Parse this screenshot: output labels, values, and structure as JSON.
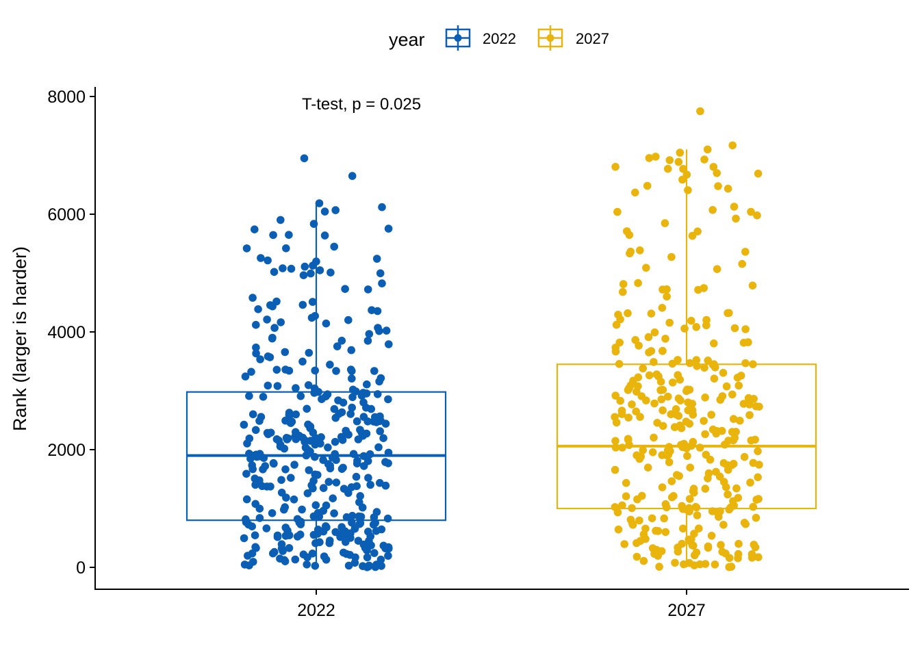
{
  "chart_data": {
    "type": "box-jitter",
    "legend": {
      "title": "year",
      "position": "top",
      "entries": [
        "2022",
        "2027"
      ]
    },
    "annotation": "T-test, p = 0.025",
    "ylabel": "Rank (larger is harder)",
    "xlabel": "",
    "ylim": [
      -380,
      8150
    ],
    "yticks": [
      0,
      2000,
      4000,
      6000,
      8000
    ],
    "grid": false,
    "categories": [
      "2022",
      "2027"
    ],
    "series": [
      {
        "name": "2022",
        "color": "#0A5EB4",
        "box": {
          "q1": 800,
          "median": 1900,
          "q3": 2980,
          "whisker_low": 0,
          "whisker_high": 6200
        },
        "n_points": 380,
        "outliers": [
          6950,
          6650
        ]
      },
      {
        "name": "2027",
        "color": "#E9B40C",
        "box": {
          "q1": 1000,
          "median": 2060,
          "q3": 3450,
          "whisker_low": 0,
          "whisker_high": 7100
        },
        "n_points": 340,
        "outliers": [
          7750,
          7170,
          7100
        ]
      }
    ]
  }
}
